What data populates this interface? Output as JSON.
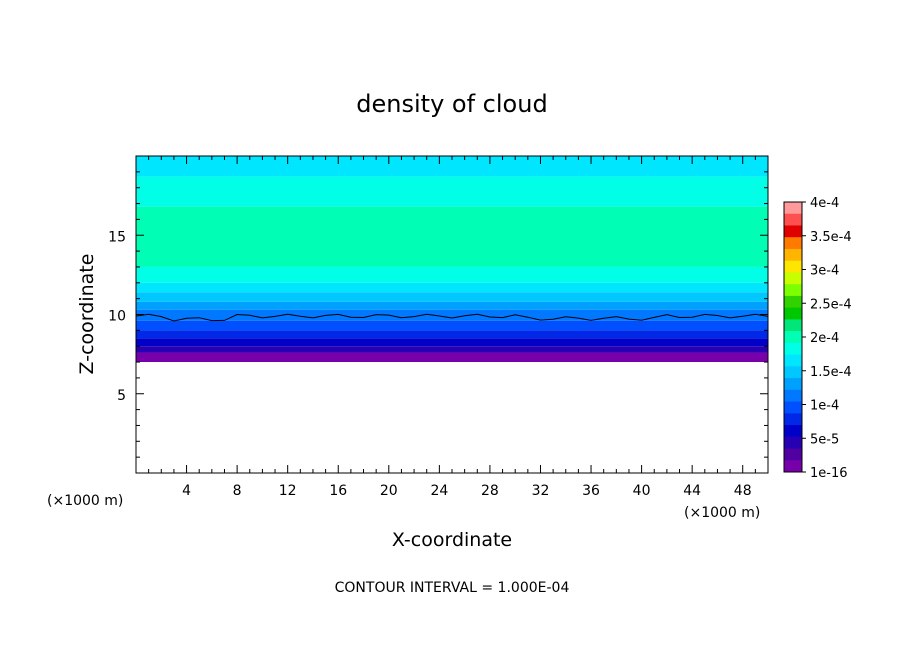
{
  "chart_data": {
    "type": "heatmap",
    "title": "density of cloud",
    "xlabel": "X-coordinate",
    "ylabel": "Z-coordinate",
    "x_unit_left": "(×1000 m)",
    "x_unit_right": "(×1000 m)",
    "x_ticks": [
      "4",
      "8",
      "12",
      "16",
      "20",
      "24",
      "28",
      "32",
      "36",
      "40",
      "44",
      "48"
    ],
    "y_ticks": [
      "5",
      "10",
      "15"
    ],
    "xlim": [
      0,
      50
    ],
    "ylim": [
      0,
      20
    ],
    "contour_interval_label": "CONTOUR INTERVAL = 1.000E-04",
    "colorbar": {
      "labels": [
        "4e-4",
        "3.5e-4",
        "3e-4",
        "2.5e-4",
        "2e-4",
        "1.5e-4",
        "1e-4",
        "5e-5",
        "1e-16"
      ],
      "values": [
        0.0004,
        0.00035,
        0.0003,
        0.00025,
        0.0002,
        0.00015,
        0.0001,
        5e-05,
        1e-16
      ],
      "colors": [
        "#ff9a9a",
        "#ff5050",
        "#e00000",
        "#ff7a00",
        "#ffb400",
        "#ffe600",
        "#c8ff00",
        "#7cff00",
        "#32d200",
        "#00c800",
        "#00e678",
        "#00ffb4",
        "#00ffe6",
        "#00e6ff",
        "#00c8ff",
        "#00a0ff",
        "#0078ff",
        "#0050ff",
        "#0028e6",
        "#0000c8",
        "#2800b4",
        "#5000a0",
        "#7800aa"
      ]
    },
    "field": {
      "cloud_base_z": 7.0,
      "bands": [
        {
          "z_top": 20.0,
          "color": "#00e6ff"
        },
        {
          "z_top": 18.7,
          "color": "#00ffe6"
        },
        {
          "z_top": 16.8,
          "color": "#00ffb4"
        },
        {
          "z_top": 13.0,
          "color": "#00ffe6"
        },
        {
          "z_top": 12.0,
          "color": "#00e6ff"
        },
        {
          "z_top": 11.4,
          "color": "#00c8ff"
        },
        {
          "z_top": 10.8,
          "color": "#00a0ff"
        },
        {
          "z_top": 10.3,
          "color": "#0078ff"
        },
        {
          "z_top": 9.6,
          "color": "#0050ff"
        },
        {
          "z_top": 9.0,
          "color": "#0028e6"
        },
        {
          "z_top": 8.5,
          "color": "#0000c8"
        },
        {
          "z_top": 8.0,
          "color": "#2800b4"
        },
        {
          "z_top": 7.6,
          "color": "#7800aa"
        }
      ],
      "contour_line_z": 9.9
    }
  }
}
